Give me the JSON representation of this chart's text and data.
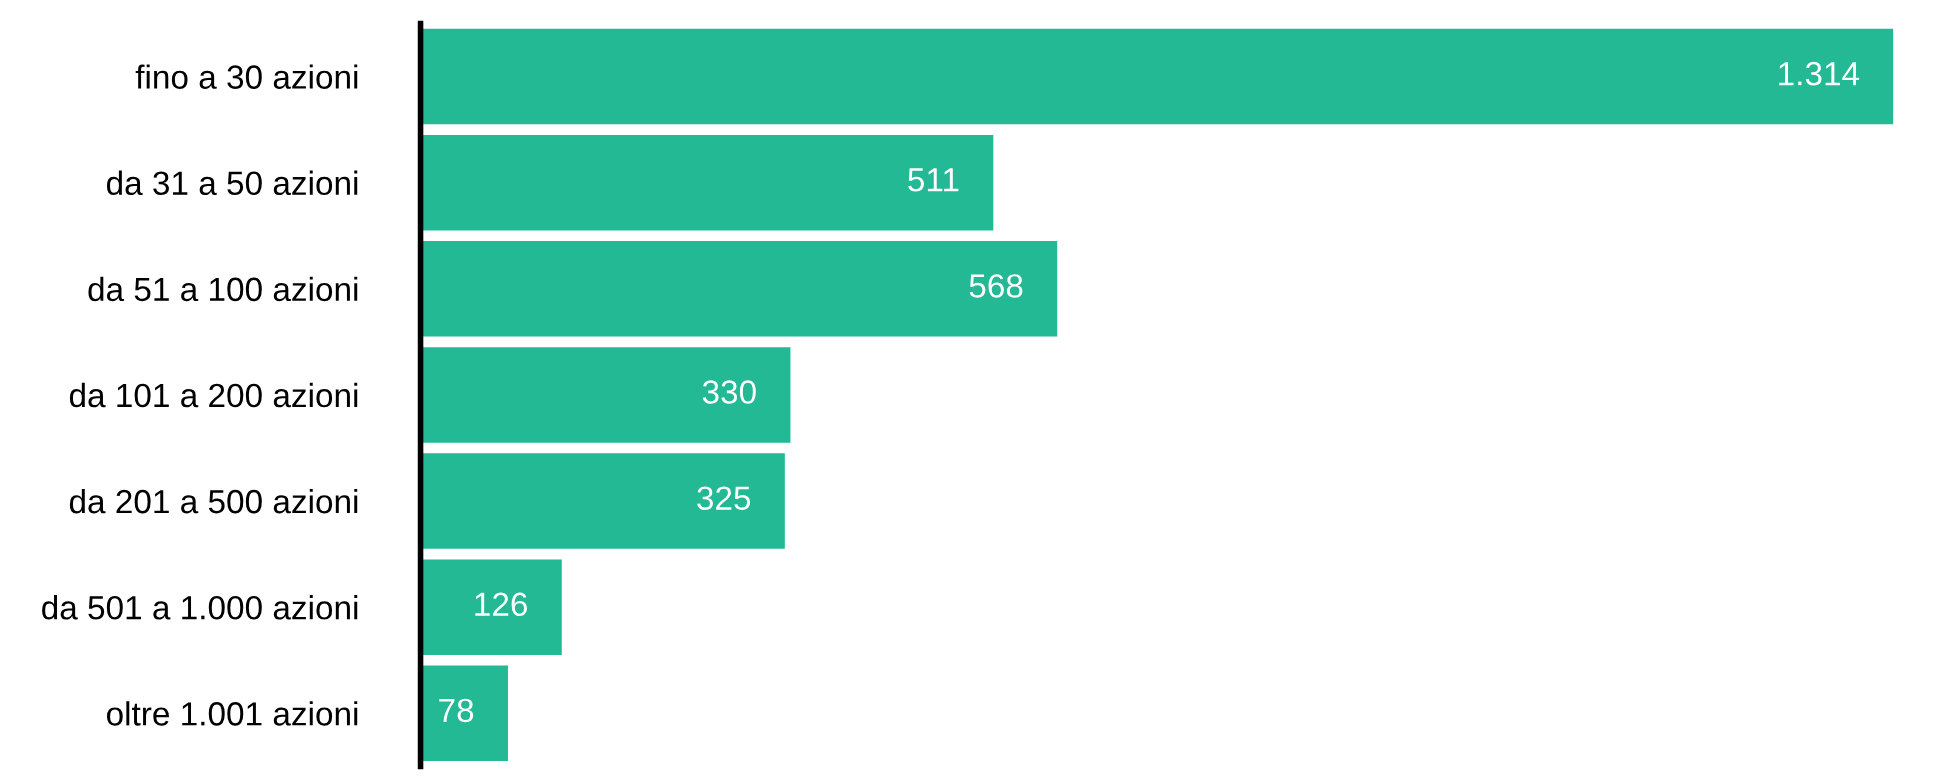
{
  "chart_data": {
    "type": "bar",
    "orientation": "horizontal",
    "categories": [
      "fino a 30 azioni",
      "da 31 a 50 azioni",
      "da 51 a 100 azioni",
      "da 101 a 200 azioni",
      "da 201 a 500 azioni",
      "da 501 a 1.000 azioni",
      "oltre 1.001 azioni"
    ],
    "values": [
      1314,
      511,
      568,
      330,
      325,
      126,
      78
    ],
    "value_labels": [
      "1.314",
      "511",
      "568",
      "330",
      "325",
      "126",
      "78"
    ],
    "color": "#22b994",
    "grid": false,
    "legend": false
  }
}
